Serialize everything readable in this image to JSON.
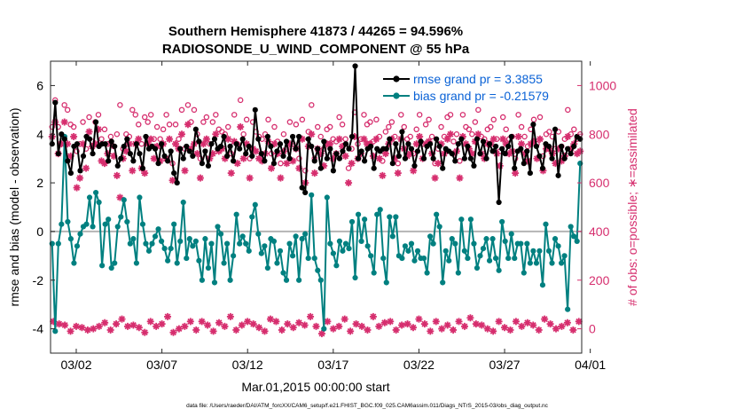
{
  "chart_data": {
    "type": "line",
    "title": "Southern Hemisphere 41873 / 44265 = 94.596%",
    "subtitle": "RADIOSONDE_U_WIND_COMPONENT @ 55 hPa",
    "xlabel": "Mar.01,2015 00:00:00 start",
    "ylabel": "rmse and bias (model - observation)",
    "y2label": "# of obs: o=possible; ∗=assimilated",
    "footer": "data file: /Users/raeder/DAI/ATM_forcXX/CAM6_setup/f.e21.FHIST_BGC.f09_025.CAM6assim.011/Diags_NTrS_2015-03/obs_diag_output.nc",
    "xlim": [
      0.5,
      31.5
    ],
    "ylim": [
      -5,
      7
    ],
    "y2lim": [
      -100,
      1100
    ],
    "x_tick_values": [
      2,
      7,
      12,
      17,
      22,
      27,
      32
    ],
    "x_tick_labels": [
      "03/02",
      "03/07",
      "03/12",
      "03/17",
      "03/22",
      "03/27",
      "04/01"
    ],
    "y_ticks": [
      -4,
      -2,
      0,
      2,
      4,
      6
    ],
    "y2_ticks": [
      0,
      200,
      400,
      600,
      800,
      1000
    ],
    "colors": {
      "rmse": "#000000",
      "bias": "#008080",
      "obs": "#d62e6e",
      "zero": "#b4b4b4"
    },
    "legend": {
      "position": "top-right",
      "rmse_label": "rmse grand pr = 3.3855",
      "bias_label": "bias grand pr = -0.21579"
    },
    "series": [
      {
        "name": "rmse",
        "values": [
          3.6,
          5.3,
          3.2,
          4.0,
          3.8,
          2.9,
          2.4,
          3.5,
          3.6,
          2.5,
          3.1,
          3.9,
          3.8,
          3.2,
          4.5,
          3.5,
          3.6,
          3.6,
          2.9,
          3.7,
          3.5,
          2.7,
          3.0,
          3.5,
          3.8,
          3.2,
          2.9,
          3.6,
          3.2,
          2.6,
          3.9,
          3.4,
          3.5,
          3.4,
          2.8,
          3.6,
          3.1,
          2.9,
          3.3,
          2.4,
          2.0,
          3.4,
          3.0,
          3.5,
          3.3,
          3.1,
          4.2,
          3.7,
          2.8,
          3.3,
          2.7,
          3.6,
          3.8,
          3.4,
          3.5,
          3.9,
          3.1,
          3.5,
          2.9,
          3.6,
          3.4,
          3.8,
          3.2,
          3.5,
          3.1,
          5.0,
          3.8,
          3.2,
          2.9,
          3.9,
          3.5,
          2.8,
          3.3,
          3.6,
          3.1,
          3.7,
          3.0,
          3.9,
          3.4,
          3.9,
          1.8,
          1.6,
          3.8,
          3.5,
          2.9,
          3.4,
          2.6,
          3.7,
          3.0,
          3.4,
          2.5,
          3.2,
          3.0,
          3.3,
          3.6,
          3.4,
          3.9,
          6.8,
          3.0,
          3.3,
          2.9,
          3.4,
          3.5,
          2.6,
          3.4,
          3.3,
          3.4,
          3.4,
          3.8,
          2.8,
          3.6,
          3.1,
          4.1,
          3.0,
          3.6,
          3.4,
          2.7,
          3.3,
          3.7,
          3.0,
          3.5,
          3.6,
          3.0,
          3.8,
          3.5,
          2.6,
          3.4,
          3.3,
          3.2,
          2.9,
          3.6,
          3.8,
          3.0,
          3.5,
          3.0,
          2.7,
          3.8,
          3.2,
          3.7,
          3.0,
          3.6,
          3.3,
          3.5,
          1.2,
          3.4,
          3.2,
          3.5,
          3.9,
          2.6,
          3.3,
          3.4,
          2.8,
          3.3,
          2.4,
          4.4,
          3.5,
          3.1,
          2.6,
          3.6,
          3.5,
          3.0,
          4.2,
          2.3,
          3.5,
          3.0,
          3.4,
          3.2,
          3.5,
          3.9,
          3.8
        ]
      },
      {
        "name": "bias",
        "values": [
          -0.5,
          -4.1,
          -0.5,
          0.3,
          3.9,
          0.4,
          -0.3,
          -1.3,
          -0.6,
          -0.1,
          0.2,
          0.3,
          1.4,
          0.2,
          1.6,
          1.2,
          -1.4,
          0.3,
          0.5,
          -1.5,
          -1.3,
          0.2,
          0.6,
          1.3,
          0.4,
          -0.5,
          -0.3,
          -1.3,
          1.4,
          0.3,
          -0.5,
          -0.8,
          -0.5,
          -0.2,
          0.1,
          -0.4,
          -0.7,
          -1.2,
          -0.7,
          0.3,
          -1.3,
          -0.4,
          1.2,
          -1.1,
          -0.3,
          -0.6,
          -0.4,
          -1.2,
          -2.0,
          -0.3,
          -1.5,
          -0.5,
          -2.1,
          0.2,
          -0.1,
          -1.3,
          -0.5,
          -2.0,
          -1.0,
          0.7,
          -0.5,
          -0.2,
          -0.5,
          -0.8,
          0.6,
          1.1,
          -0.1,
          -0.9,
          -0.6,
          -1.5,
          -0.3,
          -0.4,
          -1.3,
          -0.8,
          -1.7,
          -2.0,
          -0.5,
          -1.0,
          -0.2,
          -2.0,
          -0.3,
          -0.1,
          -1.1,
          1.5,
          -1.1,
          -1.6,
          -2.0,
          -4.0,
          1.4,
          -0.5,
          -0.9,
          -1.4,
          -0.4,
          -0.8,
          -0.5,
          -0.7,
          0.4,
          -1.9,
          0.7,
          -0.4,
          0.5,
          -0.6,
          -1.0,
          -1.7,
          0.7,
          0.9,
          -1.1,
          -2.1,
          0.6,
          -0.2,
          0.6,
          -1.0,
          -1.1,
          -0.6,
          -0.8,
          -0.5,
          -1.2,
          -0.8,
          -1.1,
          -1.1,
          -1.7,
          -0.2,
          -0.5,
          0.7,
          0.2,
          -2.1,
          -0.8,
          -1.2,
          -0.3,
          -0.5,
          -1.7,
          0.5,
          -0.8,
          -1.1,
          0.5,
          -0.5,
          -1.5,
          -1.0,
          -0.7,
          -0.3,
          -1.2,
          -0.3,
          -1.1,
          -1.6,
          0.4,
          -0.4,
          -1.1,
          -0.1,
          -1.1,
          -0.5,
          -0.5,
          -1.7,
          -0.5,
          -1.3,
          -0.8,
          -1.3,
          -0.8,
          -2.2,
          0.3,
          -0.8,
          -1.3,
          -0.3,
          -0.6,
          -1.3,
          -1.0,
          -3.2,
          0.2,
          -0.2,
          -0.4,
          2.8
        ]
      },
      {
        "name": "obs_possible",
        "values": [
          830,
          940,
          830,
          760,
          920,
          900,
          840,
          830,
          730,
          760,
          850,
          740,
          870,
          770,
          850,
          880,
          780,
          820,
          760,
          790,
          750,
          800,
          920,
          740,
          800,
          790,
          900,
          880,
          840,
          760,
          870,
          850,
          880,
          780,
          830,
          780,
          820,
          880,
          840,
          680,
          840,
          780,
          900,
          740,
          920,
          850,
          900,
          800,
          700,
          850,
          870,
          760,
          850,
          880,
          820,
          810,
          800,
          830,
          720,
          880,
          760,
          940,
          800,
          860,
          700,
          850,
          810,
          790,
          780,
          800,
          860,
          720,
          830,
          770,
          680,
          800,
          740,
          850,
          760,
          840,
          700,
          860,
          650,
          810,
          920,
          700,
          830,
          790,
          740,
          820,
          830,
          780,
          770,
          870,
          840,
          780,
          660,
          740,
          890,
          760,
          780,
          880,
          840,
          850,
          770,
          860,
          790,
          690,
          810,
          830,
          850,
          790,
          680,
          880,
          830,
          780,
          790,
          720,
          820,
          880,
          760,
          840,
          860,
          790,
          680,
          740,
          830,
          790,
          870,
          880,
          770,
          800,
          690,
          880,
          830,
          820,
          800,
          850,
          900,
          790,
          780,
          820,
          830,
          860,
          780,
          730,
          870,
          820,
          780,
          790,
          700,
          880,
          830,
          790,
          750,
          820,
          860,
          760,
          870,
          710,
          800,
          810,
          790,
          740,
          810,
          750,
          780,
          900,
          800,
          820,
          780,
          800
        ]
      },
      {
        "name": "obs_assimilated",
        "values": [
          790,
          850,
          720,
          760,
          850,
          760,
          710,
          790,
          580,
          620,
          760,
          660,
          810,
          750,
          760,
          820,
          690,
          680,
          720,
          760,
          710,
          630,
          540,
          700,
          730,
          760,
          650,
          760,
          780,
          660,
          640,
          760,
          780,
          700,
          750,
          690,
          760,
          700,
          780,
          610,
          760,
          740,
          800,
          650,
          840,
          740,
          760,
          720,
          620,
          760,
          780,
          700,
          720,
          800,
          730,
          740,
          700,
          780,
          640,
          770,
          680,
          830,
          700,
          760,
          620,
          740,
          730,
          700,
          690,
          720,
          770,
          660,
          760,
          720,
          620,
          730,
          680,
          760,
          690,
          740,
          660,
          780,
          600,
          750,
          800,
          640,
          740,
          720,
          670,
          760,
          760,
          700,
          720,
          780,
          750,
          710,
          600,
          680,
          790,
          700,
          720,
          780,
          760,
          760,
          710,
          780,
          700,
          630,
          720,
          760,
          780,
          700,
          640,
          780,
          740,
          710,
          720,
          650,
          760,
          790,
          700,
          760,
          770,
          720,
          620,
          680,
          760,
          720,
          780,
          800,
          720,
          730,
          620,
          790,
          760,
          740,
          720,
          770,
          800,
          720,
          700,
          760,
          760,
          780,
          720,
          670,
          780,
          760,
          720,
          730,
          640,
          790,
          760,
          720,
          690,
          760,
          770,
          700,
          780,
          650,
          740,
          740,
          720,
          680,
          740,
          690,
          710,
          790,
          740,
          760,
          720,
          730
        ]
      }
    ],
    "low_markers": {
      "name": "low-count symbols",
      "values": [
        30,
        20,
        15,
        -10,
        10,
        5,
        -5,
        0,
        10,
        25,
        -5,
        20,
        40,
        10,
        15,
        5,
        -15,
        30,
        10,
        20,
        50,
        -15,
        0,
        10,
        30,
        -5,
        30,
        15,
        -10,
        25,
        10,
        50,
        -5,
        15,
        30,
        20,
        5,
        -10,
        40,
        30,
        -5,
        20,
        5,
        25,
        15,
        50,
        10,
        -20,
        30,
        0,
        10,
        40,
        -10,
        20,
        10,
        -5,
        50,
        10,
        25,
        30,
        -5,
        15,
        20,
        5,
        40,
        20,
        -10,
        30,
        0,
        15,
        -5,
        30,
        10,
        45,
        20,
        15,
        0,
        -10,
        30,
        5,
        -5,
        30,
        10,
        25,
        15,
        -5,
        40,
        20,
        0,
        10,
        25,
        -5,
        30
      ]
    }
  }
}
